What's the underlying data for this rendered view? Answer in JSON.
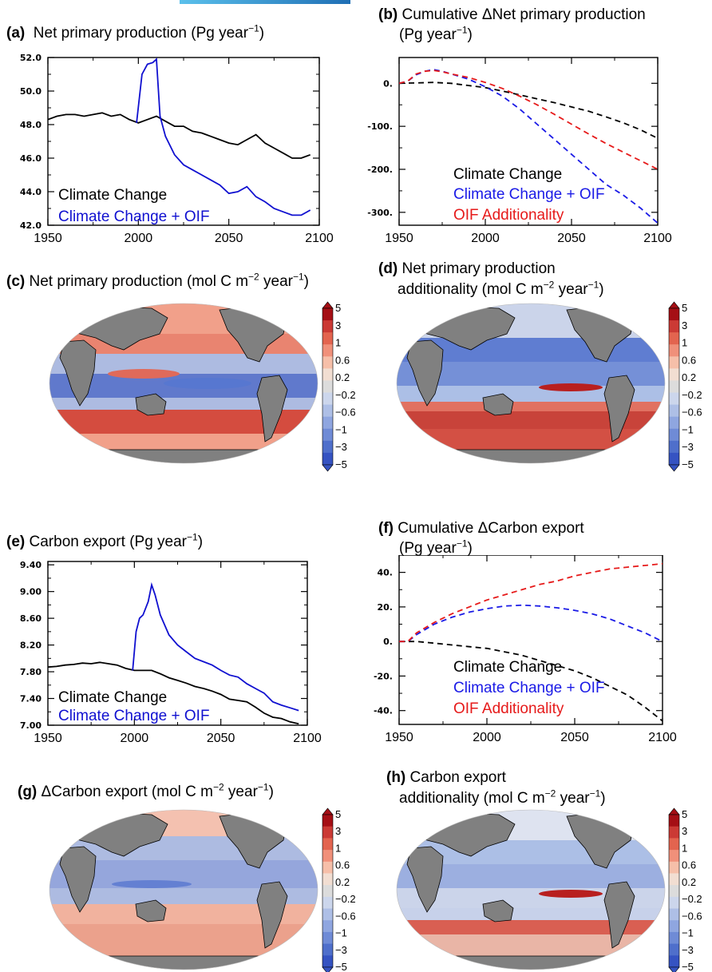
{
  "chart_data": [
    {
      "id": "a",
      "type": "line",
      "panel_label": "(a)",
      "title": "Net primary production (Pg year",
      "title_sup": "−1",
      "title_end": ")",
      "xlim": [
        1950,
        2100
      ],
      "ylim": [
        42.0,
        52.0
      ],
      "x_ticks": [
        "1950",
        "2000",
        "2050",
        "2100"
      ],
      "x_tick_values": [
        1950,
        2000,
        2050,
        2100
      ],
      "y_ticks": [
        "42.0",
        "44.0",
        "46.0",
        "48.0",
        "50.0",
        "52.0"
      ],
      "y_tick_values": [
        42,
        44,
        46,
        48,
        50,
        52
      ],
      "legend": [
        "Climate Change",
        "Climate Change + OIF"
      ],
      "series": [
        {
          "color": "#000000",
          "dash": false,
          "x": [
            1950,
            1955,
            1960,
            1965,
            1970,
            1975,
            1980,
            1985,
            1990,
            1995,
            2000,
            2005,
            2010,
            2015,
            2020,
            2025,
            2030,
            2035,
            2040,
            2045,
            2050,
            2055,
            2060,
            2065,
            2070,
            2075,
            2080,
            2085,
            2090,
            2095
          ],
          "y": [
            48.3,
            48.5,
            48.6,
            48.6,
            48.5,
            48.6,
            48.7,
            48.5,
            48.6,
            48.3,
            48.1,
            48.3,
            48.5,
            48.2,
            47.9,
            47.9,
            47.6,
            47.5,
            47.3,
            47.1,
            46.9,
            46.8,
            47.1,
            47.4,
            46.9,
            46.6,
            46.3,
            46.0,
            46.0,
            46.2
          ]
        },
        {
          "color": "#1010d0",
          "dash": false,
          "x": [
            1999,
            2002,
            2005,
            2008,
            2010,
            2012,
            2015,
            2020,
            2025,
            2030,
            2035,
            2040,
            2045,
            2050,
            2055,
            2060,
            2065,
            2070,
            2075,
            2080,
            2085,
            2090,
            2095
          ],
          "y": [
            48.1,
            51.0,
            51.6,
            51.7,
            51.9,
            48.5,
            47.3,
            46.2,
            45.6,
            45.3,
            45.0,
            44.7,
            44.4,
            43.9,
            44.0,
            44.3,
            43.7,
            43.4,
            43.0,
            42.8,
            42.6,
            42.6,
            42.9
          ]
        }
      ]
    },
    {
      "id": "b",
      "type": "line",
      "panel_label": "(b)",
      "title": "Cumulative ΔNet primary production",
      "title_line2": "(Pg year",
      "title_sup": "−1",
      "title_end": ")",
      "xlim": [
        1950,
        2100
      ],
      "ylim": [
        -330,
        60
      ],
      "x_ticks": [
        "1950",
        "2000",
        "2050",
        "2100"
      ],
      "x_tick_values": [
        1950,
        2000,
        2050,
        2100
      ],
      "y_ticks": [
        "-300.",
        "-200.",
        "-100.",
        "0."
      ],
      "y_tick_values": [
        -300,
        -200,
        -100,
        0
      ],
      "legend": [
        "Climate Change",
        "Climate Change + OIF",
        "OIF Additionality"
      ],
      "series": [
        {
          "color": "#000000",
          "dash": true,
          "x": [
            1950,
            1960,
            1970,
            1980,
            1990,
            2000,
            2010,
            2020,
            2030,
            2040,
            2050,
            2060,
            2070,
            2080,
            2090,
            2100
          ],
          "y": [
            0,
            1,
            2,
            0,
            -5,
            -10,
            -18,
            -27,
            -36,
            -45,
            -55,
            -65,
            -78,
            -92,
            -108,
            -128
          ]
        },
        {
          "color": "#1a1ae6",
          "dash": true,
          "x": [
            1950,
            1955,
            1960,
            1965,
            1970,
            1975,
            1980,
            1990,
            2000,
            2010,
            2020,
            2030,
            2040,
            2050,
            2060,
            2070,
            2080,
            2090,
            2100
          ],
          "y": [
            0,
            5,
            20,
            28,
            32,
            28,
            22,
            10,
            -8,
            -30,
            -60,
            -95,
            -130,
            -165,
            -200,
            -235,
            -260,
            -290,
            -325
          ]
        },
        {
          "color": "#e61a1a",
          "dash": true,
          "x": [
            1950,
            1955,
            1960,
            1965,
            1970,
            1975,
            1980,
            1990,
            2000,
            2010,
            2020,
            2030,
            2040,
            2050,
            2060,
            2070,
            2080,
            2090,
            2100
          ],
          "y": [
            0,
            5,
            22,
            28,
            30,
            27,
            22,
            14,
            2,
            -12,
            -30,
            -50,
            -72,
            -95,
            -118,
            -140,
            -160,
            -180,
            -200
          ]
        }
      ]
    },
    {
      "id": "e",
      "type": "line",
      "panel_label": "(e)",
      "title": "Carbon export (Pg year",
      "title_sup": "−1",
      "title_end": ")",
      "xlim": [
        1950,
        2100
      ],
      "ylim": [
        7.0,
        9.45
      ],
      "x_ticks": [
        "1950",
        "2000",
        "2050",
        "2100"
      ],
      "x_tick_values": [
        1950,
        2000,
        2050,
        2100
      ],
      "y_ticks": [
        "7.00",
        "7.40",
        "7.80",
        "8.20",
        "8.60",
        "9.00",
        "9.40"
      ],
      "y_tick_values": [
        7.0,
        7.4,
        7.8,
        8.2,
        8.6,
        9.0,
        9.4
      ],
      "legend": [
        "Climate Change",
        "Climate Change + OIF"
      ],
      "series": [
        {
          "color": "#000000",
          "dash": false,
          "x": [
            1950,
            1955,
            1960,
            1965,
            1970,
            1975,
            1980,
            1985,
            1990,
            1995,
            2000,
            2005,
            2010,
            2015,
            2020,
            2025,
            2030,
            2035,
            2040,
            2045,
            2050,
            2055,
            2060,
            2065,
            2070,
            2075,
            2080,
            2085,
            2090,
            2095
          ],
          "y": [
            7.87,
            7.88,
            7.9,
            7.91,
            7.93,
            7.92,
            7.94,
            7.92,
            7.9,
            7.85,
            7.82,
            7.82,
            7.82,
            7.77,
            7.71,
            7.67,
            7.63,
            7.58,
            7.55,
            7.51,
            7.46,
            7.39,
            7.37,
            7.35,
            7.27,
            7.18,
            7.12,
            7.1,
            7.05,
            7.02
          ]
        },
        {
          "color": "#1010d0",
          "dash": false,
          "x": [
            1999,
            2001,
            2003,
            2005,
            2008,
            2010,
            2012,
            2015,
            2020,
            2025,
            2030,
            2035,
            2040,
            2045,
            2050,
            2055,
            2060,
            2065,
            2070,
            2075,
            2080,
            2085,
            2090,
            2095
          ],
          "y": [
            7.82,
            8.4,
            8.6,
            8.65,
            8.85,
            9.1,
            8.95,
            8.65,
            8.35,
            8.2,
            8.1,
            8.0,
            7.95,
            7.9,
            7.82,
            7.75,
            7.72,
            7.62,
            7.55,
            7.48,
            7.35,
            7.3,
            7.26,
            7.22
          ]
        }
      ]
    },
    {
      "id": "f",
      "type": "line",
      "panel_label": "(f)",
      "title": "Cumulative  ΔCarbon export",
      "title_line2": "(Pg year",
      "title_sup": "−1",
      "title_end": ")",
      "xlim": [
        1950,
        2100
      ],
      "ylim": [
        -48,
        50
      ],
      "x_ticks": [
        "1950",
        "2000",
        "2050",
        "2100"
      ],
      "x_tick_values": [
        1950,
        2000,
        2050,
        2100
      ],
      "y_ticks": [
        "-40.",
        "-20.",
        "0.",
        "20.",
        "40."
      ],
      "y_tick_values": [
        -40,
        -20,
        0,
        20,
        40
      ],
      "legend": [
        "Climate Change",
        "Climate Change + OIF",
        "OIF Additionality"
      ],
      "series": [
        {
          "color": "#000000",
          "dash": true,
          "x": [
            1950,
            1960,
            1970,
            1980,
            1990,
            2000,
            2010,
            2020,
            2030,
            2040,
            2050,
            2060,
            2070,
            2080,
            2090,
            2100
          ],
          "y": [
            0,
            0,
            -1,
            -2,
            -3,
            -4,
            -6,
            -8,
            -11,
            -14,
            -17,
            -21,
            -26,
            -31,
            -38,
            -46
          ]
        },
        {
          "color": "#1a1ae6",
          "dash": true,
          "x": [
            1950,
            1955,
            1960,
            1970,
            1980,
            1990,
            2000,
            2010,
            2020,
            2030,
            2040,
            2050,
            2060,
            2070,
            2080,
            2090,
            2100
          ],
          "y": [
            0,
            0,
            4,
            10,
            14,
            17,
            19,
            20.5,
            21,
            20.5,
            19.5,
            18,
            16,
            13,
            9,
            5,
            0
          ]
        },
        {
          "color": "#e61a1a",
          "dash": true,
          "x": [
            1950,
            1955,
            1960,
            1970,
            1980,
            1990,
            2000,
            2010,
            2020,
            2030,
            2040,
            2050,
            2060,
            2070,
            2080,
            2090,
            2100
          ],
          "y": [
            0,
            0,
            5,
            11,
            16,
            20,
            24,
            27,
            30,
            33,
            35,
            38,
            40,
            42,
            43,
            44,
            45
          ]
        }
      ]
    }
  ],
  "maps": [
    {
      "id": "c",
      "panel_label": "(c)",
      "title": "Net primary production (mol C m",
      "title_sup": "−2",
      "title_end": " year",
      "title_sup2": "−1",
      "title_end2": ")"
    },
    {
      "id": "d",
      "panel_label": "(d)",
      "title": "Net primary production",
      "title_line2": "additionality (mol C m",
      "title_sup": "−2",
      "title_end": " year",
      "title_sup2": "−1",
      "title_end2": ")"
    },
    {
      "id": "g",
      "panel_label": "(g)",
      "title": "ΔCarbon export (mol C m",
      "title_sup": "−2",
      "title_end": " year",
      "title_sup2": "−1",
      "title_end2": ")"
    },
    {
      "id": "h",
      "panel_label": "(h)",
      "title": "Carbon export",
      "title_line2": "additionality (mol C m",
      "title_sup": "−2",
      "title_end": " year",
      "title_sup2": "−1",
      "title_end2": ")"
    }
  ],
  "colorbar": {
    "labels": [
      "5",
      "3",
      "1",
      "0.6",
      "0.2",
      "−0.2",
      "−0.6",
      "−1",
      "−3",
      "−5"
    ],
    "colors": [
      "#a50f15",
      "#cb3a35",
      "#e3644f",
      "#f0907a",
      "#f6bfa9",
      "#f2ded2",
      "#dcdcdc",
      "#ccd6ec",
      "#aebfe6",
      "#8fa6e0",
      "#6f8bd6",
      "#4f6fcb",
      "#3553c2"
    ]
  },
  "map_colors": {
    "land": "#808080",
    "ocean_neutral": "#dcdcdc",
    "red": "#d2483b",
    "light_red": "#f0a08a",
    "blue": "#5777d0",
    "light_blue": "#a9bde6"
  }
}
